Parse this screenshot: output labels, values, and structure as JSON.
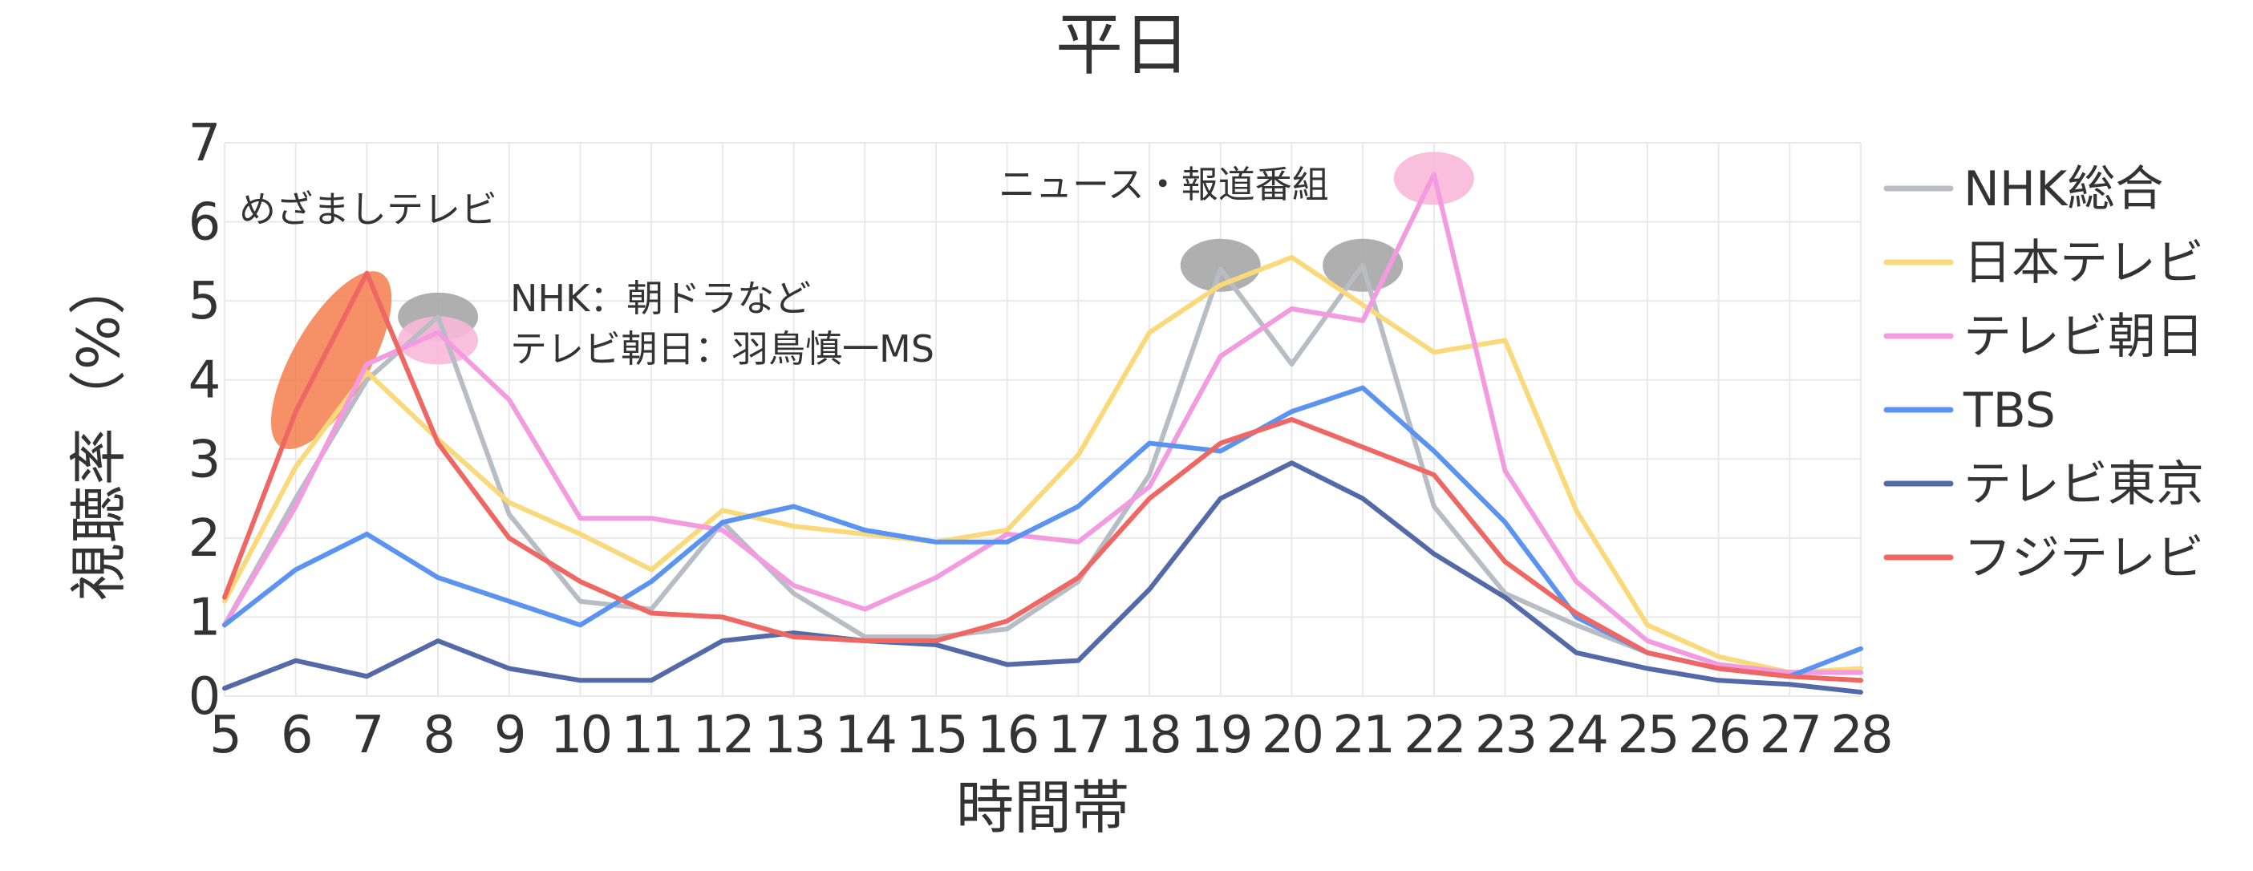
{
  "chart_data": {
    "type": "line",
    "title": "平日",
    "xlabel": "時間帯",
    "ylabel": "視聴率（%）",
    "ylim": [
      0,
      7
    ],
    "grid": true,
    "legend_position": "right",
    "x": [
      5,
      6,
      7,
      8,
      9,
      10,
      11,
      12,
      13,
      14,
      15,
      16,
      17,
      18,
      19,
      20,
      21,
      22,
      23,
      24,
      25,
      26,
      27,
      28
    ],
    "x_tick_labels": [
      "5",
      "6",
      "7",
      "8",
      "9",
      "10",
      "11",
      "12",
      "13",
      "14",
      "15",
      "16",
      "17",
      "18",
      "19",
      "20",
      "21",
      "22",
      "23",
      "24",
      "25",
      "26",
      "27",
      "28"
    ],
    "y_tick_labels": [
      "0",
      "1",
      "2",
      "3",
      "4",
      "5",
      "6",
      "7"
    ],
    "series": [
      {
        "name": "NHK総合",
        "color": "#b8bcc4",
        "values": [
          0.9,
          2.5,
          4.0,
          4.8,
          2.3,
          1.2,
          1.1,
          2.2,
          1.3,
          0.75,
          0.75,
          0.85,
          1.45,
          2.8,
          5.4,
          4.2,
          5.45,
          2.4,
          1.3,
          0.9,
          0.55,
          0.35,
          0.3,
          0.3
        ]
      },
      {
        "name": "日本テレビ",
        "color": "#fad97b",
        "values": [
          1.2,
          2.9,
          4.1,
          3.25,
          2.45,
          2.05,
          1.6,
          2.35,
          2.15,
          2.05,
          1.95,
          2.1,
          3.05,
          4.6,
          5.2,
          5.55,
          4.95,
          4.35,
          4.5,
          2.35,
          0.9,
          0.5,
          0.3,
          0.35
        ]
      },
      {
        "name": "テレビ朝日",
        "color": "#f39be0",
        "values": [
          0.9,
          2.4,
          4.2,
          4.6,
          3.75,
          2.25,
          2.25,
          2.1,
          1.4,
          1.1,
          1.5,
          2.05,
          1.95,
          2.65,
          4.3,
          4.9,
          4.75,
          6.6,
          2.85,
          1.45,
          0.7,
          0.4,
          0.3,
          0.3
        ]
      },
      {
        "name": "TBS",
        "color": "#5b93f1",
        "values": [
          0.9,
          1.6,
          2.05,
          1.5,
          1.2,
          0.9,
          1.45,
          2.2,
          2.4,
          2.1,
          1.95,
          1.95,
          2.4,
          3.2,
          3.1,
          3.6,
          3.9,
          3.1,
          2.2,
          1.0,
          0.55,
          0.35,
          0.25,
          0.6
        ]
      },
      {
        "name": "テレビ東京",
        "color": "#5469a8",
        "values": [
          0.1,
          0.45,
          0.25,
          0.7,
          0.35,
          0.2,
          0.2,
          0.7,
          0.8,
          0.7,
          0.65,
          0.4,
          0.45,
          1.35,
          2.5,
          2.95,
          2.5,
          1.8,
          1.25,
          0.55,
          0.35,
          0.2,
          0.15,
          0.05
        ]
      },
      {
        "name": "フジテレビ",
        "color": "#ef6763",
        "values": [
          1.25,
          3.6,
          5.35,
          3.2,
          2.0,
          1.45,
          1.05,
          1.0,
          0.75,
          0.7,
          0.7,
          0.95,
          1.5,
          2.5,
          3.2,
          3.5,
          3.15,
          2.8,
          1.7,
          1.05,
          0.55,
          0.35,
          0.25,
          0.2
        ]
      }
    ],
    "annotations": [
      {
        "text": "めざましテレビ"
      },
      {
        "text": "NHK：朝ドラなど"
      },
      {
        "text": "テレビ朝日：羽鳥慎一MS"
      },
      {
        "text": "ニュース・報道番組"
      }
    ],
    "highlights": [
      {
        "x": 6.5,
        "y": 4.25,
        "color": "#f47c4c"
      },
      {
        "x": 8,
        "y": 4.8,
        "color": "#a6a6a6"
      },
      {
        "x": 8,
        "y": 4.5,
        "color": "#f9b8d9"
      },
      {
        "x": 19,
        "y": 5.45,
        "color": "#a6a6a6"
      },
      {
        "x": 21,
        "y": 5.45,
        "color": "#a6a6a6"
      },
      {
        "x": 22,
        "y": 6.55,
        "color": "#f9b8d9"
      }
    ]
  }
}
